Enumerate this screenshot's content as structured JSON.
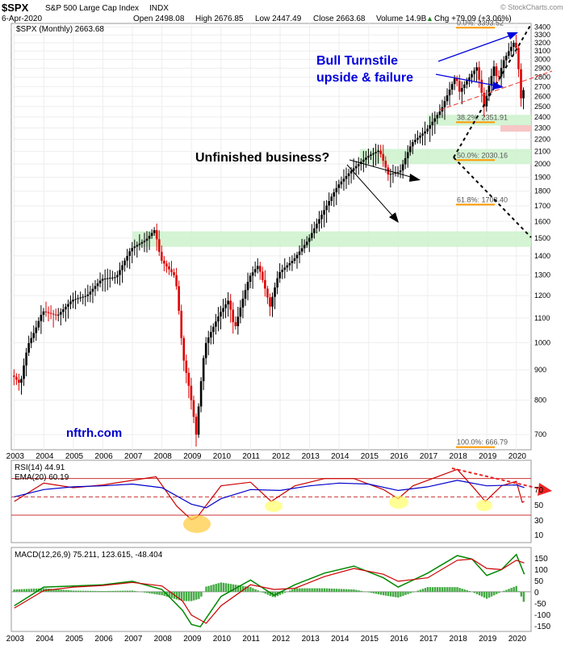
{
  "header": {
    "symbol": "$SPX",
    "name": "S&P 500 Large Cap Index",
    "exchange": "INDX",
    "date": "6-Apr-2020",
    "open": "Open 2498.08",
    "high": "High 2676.85",
    "low": "Low 2447.49",
    "close": "Close 2663.68",
    "volume": "Volume 14.9B",
    "change": "Chg +79.09 (+3.06%)",
    "change_arrow": "▲",
    "watermark": "© StockCharts.com"
  },
  "price_panel": {
    "legend": "$SPX (Monthly) 2663.68",
    "site_label": "nftrh.com",
    "annotations": {
      "bull_line1": "Bull Turnstile",
      "bull_line2": "upside  & failure",
      "unfinished": "Unfinished business?"
    },
    "fib_labels": [
      "38.2%: 2351.91",
      "50.0%: 2030.16",
      "61.8%: 1708.40",
      "100.0%: 666.79",
      "0.0%: 3393.52"
    ]
  },
  "rsi_panel": {
    "legend": "RSI(14) 44.91",
    "ema_legend": "EMA(20) 60.19",
    "ticks": [
      "70",
      "50",
      "30",
      "10"
    ]
  },
  "macd_panel": {
    "legend": "MACD(12,26,9) 75.211, 123.615, -48.404",
    "ticks": [
      "150",
      "100",
      "50",
      "0",
      "-50",
      "-100",
      "-150"
    ]
  },
  "colors": {
    "up": "#000000",
    "down": "#dd0000",
    "rsi_line": "#cc0000",
    "ema_line": "#0000cc",
    "macd_line": "#008800",
    "signal_line": "#cc0000",
    "histogram": "#44aa44",
    "support_zone": "#ccf2cc",
    "fib_line": "#ff9900",
    "annotation_blue": "#0000dd"
  },
  "chart_data": [
    {
      "type": "line",
      "title": "$SPX (Monthly) 2663.68",
      "y_scale": "log",
      "ylim": [
        660,
        3450
      ],
      "xlim": [
        2002.9,
        2020.5
      ],
      "x_ticks": [
        "2003",
        "2004",
        "2005",
        "2006",
        "2007",
        "2008",
        "2009",
        "2010",
        "2011",
        "2012",
        "2013",
        "2014",
        "2015",
        "2016",
        "2017",
        "2018",
        "2019",
        "2020"
      ],
      "y_ticks": [
        700,
        800,
        900,
        1000,
        1100,
        1200,
        1300,
        1400,
        1500,
        1600,
        1700,
        1800,
        1900,
        2000,
        2100,
        2200,
        2300,
        2400,
        2500,
        2600,
        2700,
        2800,
        2900,
        3000,
        3100,
        3200,
        3300,
        3400
      ],
      "series": [
        {
          "name": "$SPX",
          "points": [
            [
              2003.0,
              880
            ],
            [
              2003.25,
              850
            ],
            [
              2003.5,
              990
            ],
            [
              2003.75,
              1050
            ],
            [
              2004.0,
              1130
            ],
            [
              2004.5,
              1110
            ],
            [
              2005.0,
              1180
            ],
            [
              2005.5,
              1200
            ],
            [
              2006.0,
              1280
            ],
            [
              2006.5,
              1290
            ],
            [
              2007.0,
              1440
            ],
            [
              2007.5,
              1490
            ],
            [
              2007.8,
              1550
            ],
            [
              2008.0,
              1380
            ],
            [
              2008.5,
              1290
            ],
            [
              2008.75,
              950
            ],
            [
              2009.0,
              820
            ],
            [
              2009.2,
              700
            ],
            [
              2009.5,
              990
            ],
            [
              2010.0,
              1120
            ],
            [
              2010.3,
              1180
            ],
            [
              2010.5,
              1050
            ],
            [
              2011.0,
              1290
            ],
            [
              2011.3,
              1350
            ],
            [
              2011.7,
              1150
            ],
            [
              2012.0,
              1310
            ],
            [
              2012.5,
              1380
            ],
            [
              2013.0,
              1490
            ],
            [
              2013.5,
              1660
            ],
            [
              2014.0,
              1840
            ],
            [
              2014.5,
              1960
            ],
            [
              2015.0,
              2060
            ],
            [
              2015.4,
              2110
            ],
            [
              2015.7,
              1920
            ],
            [
              2016.1,
              1940
            ],
            [
              2016.5,
              2170
            ],
            [
              2017.0,
              2280
            ],
            [
              2017.5,
              2470
            ],
            [
              2018.0,
              2820
            ],
            [
              2018.1,
              2640
            ],
            [
              2018.7,
              2910
            ],
            [
              2018.95,
              2500
            ],
            [
              2019.3,
              2940
            ],
            [
              2019.4,
              2750
            ],
            [
              2019.6,
              2980
            ],
            [
              2019.85,
              3140
            ],
            [
              2020.0,
              3230
            ],
            [
              2020.1,
              2950
            ],
            [
              2020.2,
              2580
            ],
            [
              2020.27,
              2663.68
            ]
          ]
        }
      ],
      "zones": [
        {
          "label": "",
          "from": 1450,
          "to": 1540
        },
        {
          "label": "",
          "from": 2000,
          "to": 2120
        },
        {
          "label": "",
          "from": 2320,
          "to": 2420
        }
      ],
      "fib_levels": [
        {
          "label": "38.2%: 2351.91",
          "value": 2351.91
        },
        {
          "label": "50.0%: 2030.16",
          "value": 2030.16
        },
        {
          "label": "61.8%: 1708.40",
          "value": 1708.4
        },
        {
          "label": "100.0%: 666.79",
          "value": 666.79
        },
        {
          "label": "0.0%: 3393.52",
          "value": 3393.52
        }
      ]
    },
    {
      "type": "line",
      "title": "RSI(14) 44.91",
      "ylim": [
        0,
        90
      ],
      "series": [
        {
          "name": "RSI(14)",
          "points": [
            [
              2003.0,
              45
            ],
            [
              2004.0,
              65
            ],
            [
              2005.0,
              60
            ],
            [
              2006.0,
              63
            ],
            [
              2007.0,
              68
            ],
            [
              2007.8,
              72
            ],
            [
              2008.5,
              40
            ],
            [
              2009.0,
              25
            ],
            [
              2009.2,
              28
            ],
            [
              2010.0,
              62
            ],
            [
              2011.0,
              66
            ],
            [
              2011.7,
              45
            ],
            [
              2012.5,
              62
            ],
            [
              2013.5,
              70
            ],
            [
              2014.5,
              70
            ],
            [
              2015.5,
              58
            ],
            [
              2016.0,
              48
            ],
            [
              2016.5,
              62
            ],
            [
              2017.5,
              74
            ],
            [
              2018.0,
              80
            ],
            [
              2018.5,
              62
            ],
            [
              2018.95,
              45
            ],
            [
              2019.5,
              62
            ],
            [
              2020.0,
              67
            ],
            [
              2020.2,
              44
            ],
            [
              2020.27,
              44.91
            ]
          ]
        },
        {
          "name": "EMA(20)",
          "points": [
            [
              2003.0,
              50
            ],
            [
              2004.0,
              58
            ],
            [
              2005.0,
              61
            ],
            [
              2006.0,
              62
            ],
            [
              2007.0,
              64
            ],
            [
              2008.0,
              60
            ],
            [
              2009.0,
              42
            ],
            [
              2009.5,
              38
            ],
            [
              2010.0,
              48
            ],
            [
              2011.0,
              58
            ],
            [
              2012.0,
              57
            ],
            [
              2013.0,
              62
            ],
            [
              2014.0,
              65
            ],
            [
              2015.0,
              64
            ],
            [
              2016.0,
              57
            ],
            [
              2017.0,
              61
            ],
            [
              2018.0,
              68
            ],
            [
              2019.0,
              62
            ],
            [
              2020.0,
              63
            ],
            [
              2020.27,
              60.19
            ]
          ]
        }
      ],
      "reference_lines": [
        70,
        50,
        30
      ]
    },
    {
      "type": "line",
      "title": "MACD(12,26,9) 75.211, 123.615, -48.404",
      "ylim": [
        -170,
        190
      ],
      "series": [
        {
          "name": "MACD(12,26,9)",
          "points": [
            [
              2003.0,
              -60
            ],
            [
              2004.0,
              20
            ],
            [
              2005.0,
              25
            ],
            [
              2006.0,
              30
            ],
            [
              2007.0,
              45
            ],
            [
              2008.0,
              10
            ],
            [
              2008.7,
              -80
            ],
            [
              2009.0,
              -140
            ],
            [
              2009.3,
              -150
            ],
            [
              2010.0,
              -20
            ],
            [
              2011.0,
              50
            ],
            [
              2011.8,
              -15
            ],
            [
              2012.5,
              30
            ],
            [
              2013.5,
              80
            ],
            [
              2014.5,
              110
            ],
            [
              2015.5,
              60
            ],
            [
              2016.0,
              20
            ],
            [
              2017.0,
              80
            ],
            [
              2018.0,
              155
            ],
            [
              2018.5,
              140
            ],
            [
              2019.0,
              70
            ],
            [
              2019.5,
              95
            ],
            [
              2020.0,
              160
            ],
            [
              2020.27,
              75.211
            ]
          ]
        },
        {
          "name": "Signal",
          "points": [
            [
              2003.0,
              -70
            ],
            [
              2004.0,
              5
            ],
            [
              2005.0,
              20
            ],
            [
              2006.0,
              27
            ],
            [
              2007.0,
              40
            ],
            [
              2008.0,
              25
            ],
            [
              2008.7,
              -40
            ],
            [
              2009.0,
              -100
            ],
            [
              2009.5,
              -135
            ],
            [
              2010.0,
              -60
            ],
            [
              2011.0,
              30
            ],
            [
              2011.8,
              10
            ],
            [
              2012.5,
              15
            ],
            [
              2013.5,
              65
            ],
            [
              2014.5,
              100
            ],
            [
              2015.5,
              75
            ],
            [
              2016.0,
              45
            ],
            [
              2017.0,
              60
            ],
            [
              2018.0,
              135
            ],
            [
              2018.5,
              140
            ],
            [
              2019.0,
              100
            ],
            [
              2019.5,
              95
            ],
            [
              2020.0,
              135
            ],
            [
              2020.27,
              123.615
            ]
          ]
        }
      ]
    }
  ]
}
